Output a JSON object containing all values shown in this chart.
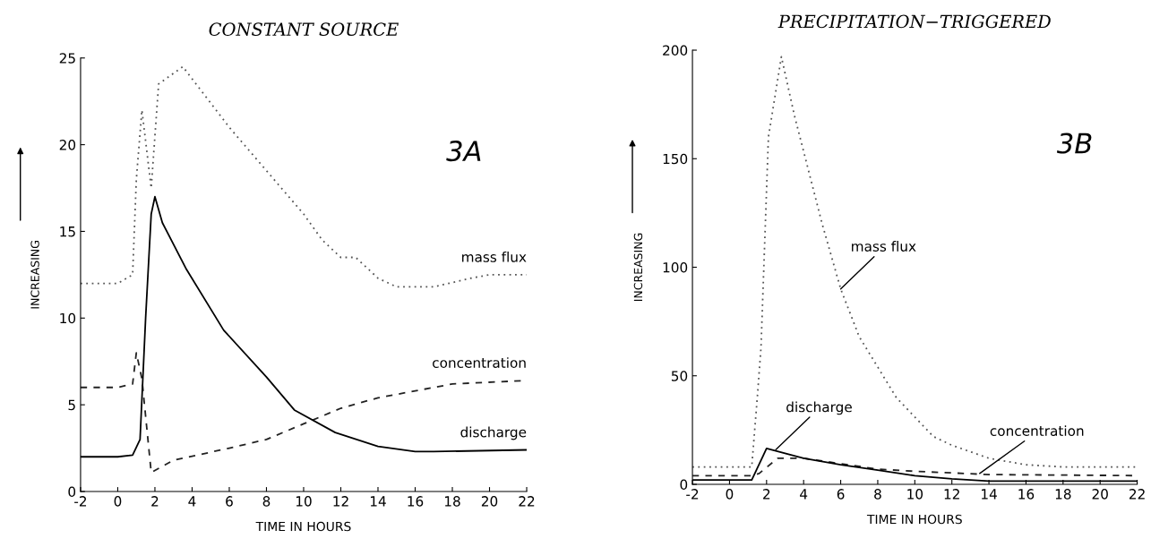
{
  "chart_data": [
    {
      "type": "line",
      "title": "CONSTANT SOURCE",
      "xlabel": "TIME IN HOURS",
      "ylabel": "INCREASING",
      "xlim": [
        -2,
        22
      ],
      "ylim": [
        0,
        25
      ],
      "xticks": [
        -2,
        0,
        2,
        4,
        6,
        8,
        10,
        12,
        14,
        16,
        18,
        20,
        22
      ],
      "yticks": [
        0,
        5,
        10,
        15,
        20,
        25
      ],
      "series": [
        {
          "color": "#555555",
          "line_style": "dotted",
          "x": [
            -2,
            -1,
            0,
            0.8,
            1.0,
            1.3,
            1.8,
            2.2,
            3.5,
            6,
            8,
            10,
            11,
            12,
            12.8,
            14,
            15,
            17,
            19,
            20,
            22
          ],
          "values": [
            12,
            12,
            12,
            12.5,
            18,
            22,
            17.5,
            23.5,
            24.5,
            21,
            18.5,
            16,
            14.5,
            13.5,
            13.5,
            12.3,
            11.8,
            11.8,
            12.3,
            12.5,
            12.5
          ]
        },
        {
          "color": "#222222",
          "line_style": "dashed",
          "x": [
            -2,
            -1,
            0,
            0.8,
            1.0,
            1.3,
            1.8,
            3,
            6,
            8,
            10,
            12,
            14,
            16,
            18,
            22
          ],
          "values": [
            6,
            6,
            6,
            6.2,
            8,
            6.5,
            1.1,
            1.8,
            2.5,
            3,
            3.9,
            4.8,
            5.4,
            5.8,
            6.2,
            6.4
          ]
        },
        {
          "color": "#000000",
          "line_style": "solid",
          "x": [
            -2,
            0,
            0.8,
            1.2,
            1.5,
            1.8,
            2.0,
            2.4,
            3.7,
            5.7,
            8,
            9.5,
            11.7,
            14,
            16,
            17,
            22
          ],
          "values": [
            2,
            2,
            2.1,
            3,
            10,
            16,
            17,
            15.5,
            12.8,
            9.3,
            6.6,
            4.7,
            3.4,
            2.6,
            2.3,
            2.3,
            2.4
          ]
        }
      ],
      "annotations": [
        "3A",
        {
          "text": "mass flux",
          "x": 22,
          "y": 12.5
        },
        {
          "text": "concentration",
          "x": 22,
          "y": 6.4
        },
        {
          "text": "discharge",
          "x": 22,
          "y": 2.4
        }
      ]
    },
    {
      "type": "line",
      "title": "PRECIPITATION−TRIGGERED",
      "xlabel": "TIME IN HOURS",
      "ylabel": "INCREASING",
      "xlim": [
        -2,
        22
      ],
      "ylim": [
        0,
        200
      ],
      "xticks": [
        -2,
        0,
        2,
        4,
        6,
        8,
        10,
        12,
        14,
        16,
        18,
        20,
        22
      ],
      "yticks": [
        0,
        50,
        100,
        150,
        200
      ],
      "series": [
        {
          "color": "#555555",
          "line_style": "dotted",
          "x": [
            -2,
            0,
            1.2,
            1.5,
            1.7,
            2.1,
            2.8,
            3.5,
            5,
            6,
            7,
            9,
            11,
            12,
            14,
            16,
            18,
            22
          ],
          "values": [
            8,
            8,
            8,
            40,
            63,
            160,
            197,
            170,
            120,
            90,
            68,
            40,
            22,
            18,
            12,
            9,
            8,
            8
          ]
        },
        {
          "color": "#222222",
          "line_style": "dashed",
          "x": [
            -2,
            0,
            1.2,
            1.6,
            2.6,
            4,
            8,
            10,
            14,
            22
          ],
          "values": [
            4,
            4,
            4,
            5,
            12,
            12,
            7,
            6,
            4.5,
            4
          ]
        },
        {
          "color": "#000000",
          "line_style": "solid",
          "x": [
            -2,
            0,
            1.2,
            2,
            4,
            6,
            8,
            10,
            12,
            14,
            22
          ],
          "values": [
            2,
            2,
            2,
            16.5,
            12,
            9,
            6.5,
            4,
            2.5,
            1.5,
            1.5
          ]
        }
      ],
      "annotations": [
        "3B",
        {
          "text": "mass flux",
          "x": 6,
          "y": 90
        },
        {
          "text": "discharge",
          "x": 2.5,
          "y": 16
        },
        {
          "text": "concentration",
          "x": 13.5,
          "y": 5
        }
      ]
    }
  ]
}
